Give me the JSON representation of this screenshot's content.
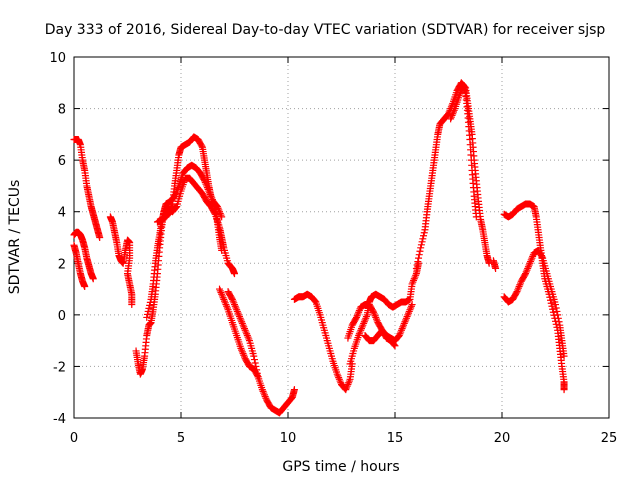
{
  "chart_data": {
    "type": "scatter",
    "title": "Day 333 of 2016, Sidereal Day-to-day VTEC variation (SDTVAR) for receiver sjsp",
    "xlabel": "GPS time / hours",
    "ylabel": "SDTVAR / TECUs",
    "xlim": [
      0,
      25
    ],
    "ylim": [
      -4,
      10
    ],
    "xticks": [
      "0",
      "5",
      "10",
      "15",
      "20",
      "25"
    ],
    "yticks": [
      "-4",
      "-2",
      "0",
      "2",
      "4",
      "6",
      "8",
      "10"
    ],
    "grid": true,
    "legend": "none",
    "marker": "+",
    "color": "#ff0000",
    "series": [
      {
        "values": [
          [
            0.0,
            6.8
          ],
          [
            0.2,
            6.8
          ],
          [
            0.3,
            6.6
          ],
          [
            0.4,
            6.0
          ],
          [
            0.5,
            5.6
          ],
          [
            0.6,
            5.0
          ],
          [
            0.7,
            4.6
          ],
          [
            0.8,
            4.2
          ],
          [
            0.9,
            3.9
          ],
          [
            1.0,
            3.6
          ],
          [
            1.1,
            3.3
          ],
          [
            1.2,
            3.0
          ]
        ]
      },
      {
        "values": [
          [
            0.0,
            3.1
          ],
          [
            0.1,
            3.2
          ],
          [
            0.2,
            3.2
          ],
          [
            0.3,
            3.1
          ],
          [
            0.4,
            2.9
          ],
          [
            0.5,
            2.6
          ],
          [
            0.6,
            2.2
          ],
          [
            0.7,
            1.9
          ],
          [
            0.8,
            1.6
          ],
          [
            0.9,
            1.4
          ]
        ]
      },
      {
        "values": [
          [
            0.0,
            2.7
          ],
          [
            0.1,
            2.4
          ],
          [
            0.2,
            2.0
          ],
          [
            0.3,
            1.6
          ],
          [
            0.4,
            1.3
          ],
          [
            0.5,
            1.1
          ]
        ]
      },
      {
        "values": [
          [
            1.7,
            3.8
          ],
          [
            1.8,
            3.6
          ],
          [
            1.9,
            3.2
          ],
          [
            2.0,
            2.8
          ],
          [
            2.1,
            2.3
          ],
          [
            2.2,
            2.1
          ],
          [
            2.3,
            2.0
          ],
          [
            2.4,
            2.5
          ],
          [
            2.5,
            2.9
          ],
          [
            2.6,
            2.8
          ],
          [
            2.6,
            2.2
          ],
          [
            2.5,
            1.6
          ],
          [
            2.6,
            1.2
          ],
          [
            2.7,
            0.8
          ],
          [
            2.7,
            0.4
          ]
        ]
      },
      {
        "values": [
          [
            2.9,
            -1.4
          ],
          [
            3.0,
            -1.9
          ],
          [
            3.1,
            -2.3
          ],
          [
            3.2,
            -2.1
          ],
          [
            3.3,
            -1.6
          ],
          [
            3.4,
            -0.8
          ],
          [
            3.5,
            -0.4
          ],
          [
            3.6,
            -0.3
          ],
          [
            3.7,
            0.2
          ],
          [
            3.8,
            0.8
          ],
          [
            3.9,
            1.6
          ],
          [
            4.0,
            2.6
          ],
          [
            4.1,
            3.4
          ],
          [
            4.2,
            4.0
          ],
          [
            4.3,
            4.3
          ],
          [
            4.5,
            4.4
          ],
          [
            4.7,
            4.6
          ],
          [
            4.9,
            5.0
          ],
          [
            5.1,
            5.5
          ],
          [
            5.3,
            5.7
          ],
          [
            5.5,
            5.8
          ],
          [
            5.7,
            5.7
          ],
          [
            5.9,
            5.5
          ],
          [
            6.1,
            5.2
          ],
          [
            6.3,
            4.8
          ],
          [
            6.5,
            4.4
          ],
          [
            6.7,
            4.2
          ],
          [
            6.9,
            3.8
          ]
        ]
      },
      {
        "values": [
          [
            3.4,
            -0.1
          ],
          [
            3.6,
            0.6
          ],
          [
            3.7,
            1.2
          ],
          [
            3.8,
            2.0
          ],
          [
            3.9,
            2.6
          ],
          [
            4.0,
            3.1
          ],
          [
            4.1,
            3.6
          ],
          [
            4.2,
            4.0
          ],
          [
            4.4,
            4.1
          ],
          [
            4.6,
            4.0
          ],
          [
            4.8,
            4.2
          ],
          [
            5.0,
            4.8
          ],
          [
            5.2,
            5.3
          ],
          [
            5.4,
            5.3
          ],
          [
            5.6,
            5.1
          ],
          [
            5.8,
            4.9
          ],
          [
            6.0,
            4.7
          ],
          [
            6.2,
            4.4
          ],
          [
            6.4,
            4.2
          ],
          [
            6.6,
            3.9
          ],
          [
            6.8,
            3.4
          ],
          [
            6.9,
            3.0
          ],
          [
            7.0,
            2.6
          ],
          [
            7.2,
            2.0
          ],
          [
            7.4,
            1.8
          ],
          [
            7.5,
            1.6
          ]
        ]
      },
      {
        "values": [
          [
            3.9,
            3.6
          ],
          [
            4.1,
            3.7
          ],
          [
            4.3,
            3.8
          ],
          [
            4.5,
            4.0
          ],
          [
            4.6,
            4.3
          ],
          [
            4.7,
            5.0
          ],
          [
            4.8,
            5.6
          ],
          [
            4.9,
            6.2
          ],
          [
            5.0,
            6.5
          ],
          [
            5.2,
            6.6
          ],
          [
            5.4,
            6.7
          ],
          [
            5.6,
            6.9
          ],
          [
            5.8,
            6.8
          ],
          [
            6.0,
            6.5
          ],
          [
            6.1,
            6.0
          ],
          [
            6.2,
            5.5
          ],
          [
            6.3,
            5.0
          ],
          [
            6.4,
            4.6
          ],
          [
            6.6,
            4.2
          ],
          [
            6.7,
            3.6
          ],
          [
            6.8,
            3.0
          ],
          [
            6.9,
            2.5
          ]
        ]
      },
      {
        "values": [
          [
            6.8,
            1.0
          ],
          [
            7.0,
            0.6
          ],
          [
            7.2,
            0.2
          ],
          [
            7.4,
            -0.3
          ],
          [
            7.6,
            -0.8
          ],
          [
            7.8,
            -1.3
          ],
          [
            8.0,
            -1.7
          ],
          [
            8.2,
            -2.0
          ],
          [
            8.4,
            -2.1
          ],
          [
            8.6,
            -2.4
          ]
        ]
      },
      {
        "values": [
          [
            7.2,
            0.9
          ],
          [
            7.4,
            0.6
          ],
          [
            7.6,
            0.2
          ],
          [
            7.8,
            -0.2
          ],
          [
            8.0,
            -0.6
          ],
          [
            8.2,
            -1.0
          ],
          [
            8.4,
            -1.6
          ],
          [
            8.6,
            -2.4
          ],
          [
            8.8,
            -2.9
          ],
          [
            9.0,
            -3.3
          ],
          [
            9.2,
            -3.6
          ],
          [
            9.4,
            -3.7
          ],
          [
            9.6,
            -3.8
          ],
          [
            9.8,
            -3.6
          ],
          [
            10.0,
            -3.4
          ],
          [
            10.2,
            -3.2
          ],
          [
            10.3,
            -2.9
          ]
        ]
      },
      {
        "values": [
          [
            10.3,
            0.6
          ],
          [
            10.5,
            0.7
          ],
          [
            10.7,
            0.7
          ],
          [
            10.9,
            0.8
          ],
          [
            11.1,
            0.7
          ],
          [
            11.3,
            0.5
          ],
          [
            11.5,
            0.0
          ],
          [
            11.7,
            -0.6
          ],
          [
            11.9,
            -1.2
          ],
          [
            12.1,
            -1.8
          ],
          [
            12.3,
            -2.3
          ],
          [
            12.5,
            -2.7
          ],
          [
            12.7,
            -2.9
          ],
          [
            12.9,
            -2.5
          ],
          [
            13.0,
            -1.9
          ]
        ]
      },
      {
        "values": [
          [
            12.9,
            -1.9
          ],
          [
            13.1,
            -1.3
          ],
          [
            13.3,
            -0.8
          ],
          [
            13.5,
            -0.4
          ],
          [
            13.7,
            0.0
          ],
          [
            13.8,
            0.5
          ],
          [
            13.9,
            0.7
          ],
          [
            14.1,
            0.8
          ],
          [
            14.3,
            0.7
          ],
          [
            14.5,
            0.6
          ],
          [
            14.7,
            0.4
          ],
          [
            14.9,
            0.3
          ],
          [
            15.1,
            0.4
          ],
          [
            15.3,
            0.5
          ],
          [
            15.5,
            0.5
          ],
          [
            15.7,
            0.6
          ],
          [
            15.8,
            1.2
          ],
          [
            16.0,
            1.6
          ],
          [
            16.1,
            2.0
          ]
        ]
      },
      {
        "values": [
          [
            12.8,
            -0.9
          ],
          [
            13.0,
            -0.4
          ],
          [
            13.2,
            -0.1
          ],
          [
            13.4,
            0.3
          ],
          [
            13.6,
            0.4
          ],
          [
            13.8,
            0.4
          ],
          [
            14.0,
            0.1
          ],
          [
            14.2,
            -0.3
          ],
          [
            14.4,
            -0.6
          ],
          [
            14.6,
            -0.8
          ],
          [
            14.8,
            -0.9
          ],
          [
            15.0,
            -1.0
          ],
          [
            15.2,
            -0.8
          ],
          [
            15.4,
            -0.4
          ],
          [
            15.6,
            0.0
          ],
          [
            15.8,
            0.4
          ]
        ]
      },
      {
        "values": [
          [
            13.6,
            -0.8
          ],
          [
            13.8,
            -1.0
          ],
          [
            14.0,
            -1.0
          ],
          [
            14.2,
            -0.8
          ],
          [
            14.4,
            -0.6
          ],
          [
            14.6,
            -0.9
          ],
          [
            14.8,
            -1.0
          ],
          [
            15.0,
            -1.2
          ]
        ]
      },
      {
        "values": [
          [
            16.0,
            1.8
          ],
          [
            16.2,
            2.6
          ],
          [
            16.4,
            3.3
          ],
          [
            16.5,
            4.0
          ],
          [
            16.6,
            4.6
          ],
          [
            16.7,
            5.2
          ],
          [
            16.8,
            5.8
          ],
          [
            16.9,
            6.4
          ],
          [
            17.0,
            7.0
          ],
          [
            17.1,
            7.4
          ],
          [
            17.3,
            7.6
          ],
          [
            17.5,
            7.8
          ],
          [
            17.7,
            8.2
          ],
          [
            17.9,
            8.7
          ],
          [
            18.1,
            9.0
          ],
          [
            18.3,
            8.8
          ],
          [
            18.4,
            8.2
          ],
          [
            18.5,
            7.6
          ],
          [
            18.6,
            7.0
          ],
          [
            18.7,
            6.0
          ],
          [
            18.8,
            5.2
          ],
          [
            18.9,
            4.4
          ],
          [
            19.0,
            3.7
          ],
          [
            19.1,
            3.3
          ],
          [
            19.2,
            2.8
          ],
          [
            19.3,
            2.3
          ],
          [
            19.4,
            2.0
          ]
        ]
      },
      {
        "values": [
          [
            17.6,
            7.6
          ],
          [
            17.8,
            8.0
          ],
          [
            18.0,
            8.5
          ],
          [
            18.2,
            8.9
          ],
          [
            18.3,
            8.6
          ],
          [
            18.4,
            7.8
          ],
          [
            18.5,
            6.8
          ],
          [
            18.6,
            5.6
          ],
          [
            18.7,
            4.6
          ],
          [
            18.8,
            3.8
          ]
        ]
      },
      {
        "values": [
          [
            19.6,
            2.1
          ],
          [
            19.7,
            1.8
          ]
        ]
      },
      {
        "values": [
          [
            20.1,
            0.7
          ],
          [
            20.3,
            0.5
          ],
          [
            20.5,
            0.6
          ],
          [
            20.7,
            0.9
          ],
          [
            20.9,
            1.3
          ],
          [
            21.1,
            1.6
          ],
          [
            21.3,
            2.0
          ],
          [
            21.5,
            2.4
          ],
          [
            21.7,
            2.5
          ],
          [
            21.9,
            2.2
          ],
          [
            22.1,
            1.6
          ],
          [
            22.3,
            1.0
          ],
          [
            22.5,
            0.4
          ],
          [
            22.7,
            -0.4
          ],
          [
            22.8,
            -1.0
          ],
          [
            22.9,
            -1.6
          ]
        ]
      },
      {
        "values": [
          [
            20.1,
            3.9
          ],
          [
            20.3,
            3.8
          ],
          [
            20.5,
            3.9
          ],
          [
            20.7,
            4.1
          ],
          [
            20.9,
            4.2
          ],
          [
            21.1,
            4.3
          ],
          [
            21.3,
            4.3
          ],
          [
            21.5,
            4.2
          ],
          [
            21.6,
            3.8
          ],
          [
            21.7,
            3.2
          ],
          [
            21.8,
            2.6
          ],
          [
            21.9,
            2.0
          ],
          [
            22.0,
            1.4
          ],
          [
            22.2,
            0.8
          ],
          [
            22.4,
            0.1
          ],
          [
            22.6,
            -0.6
          ],
          [
            22.7,
            -1.3
          ],
          [
            22.8,
            -2.0
          ],
          [
            22.9,
            -2.6
          ],
          [
            22.9,
            -2.9
          ]
        ]
      }
    ]
  }
}
